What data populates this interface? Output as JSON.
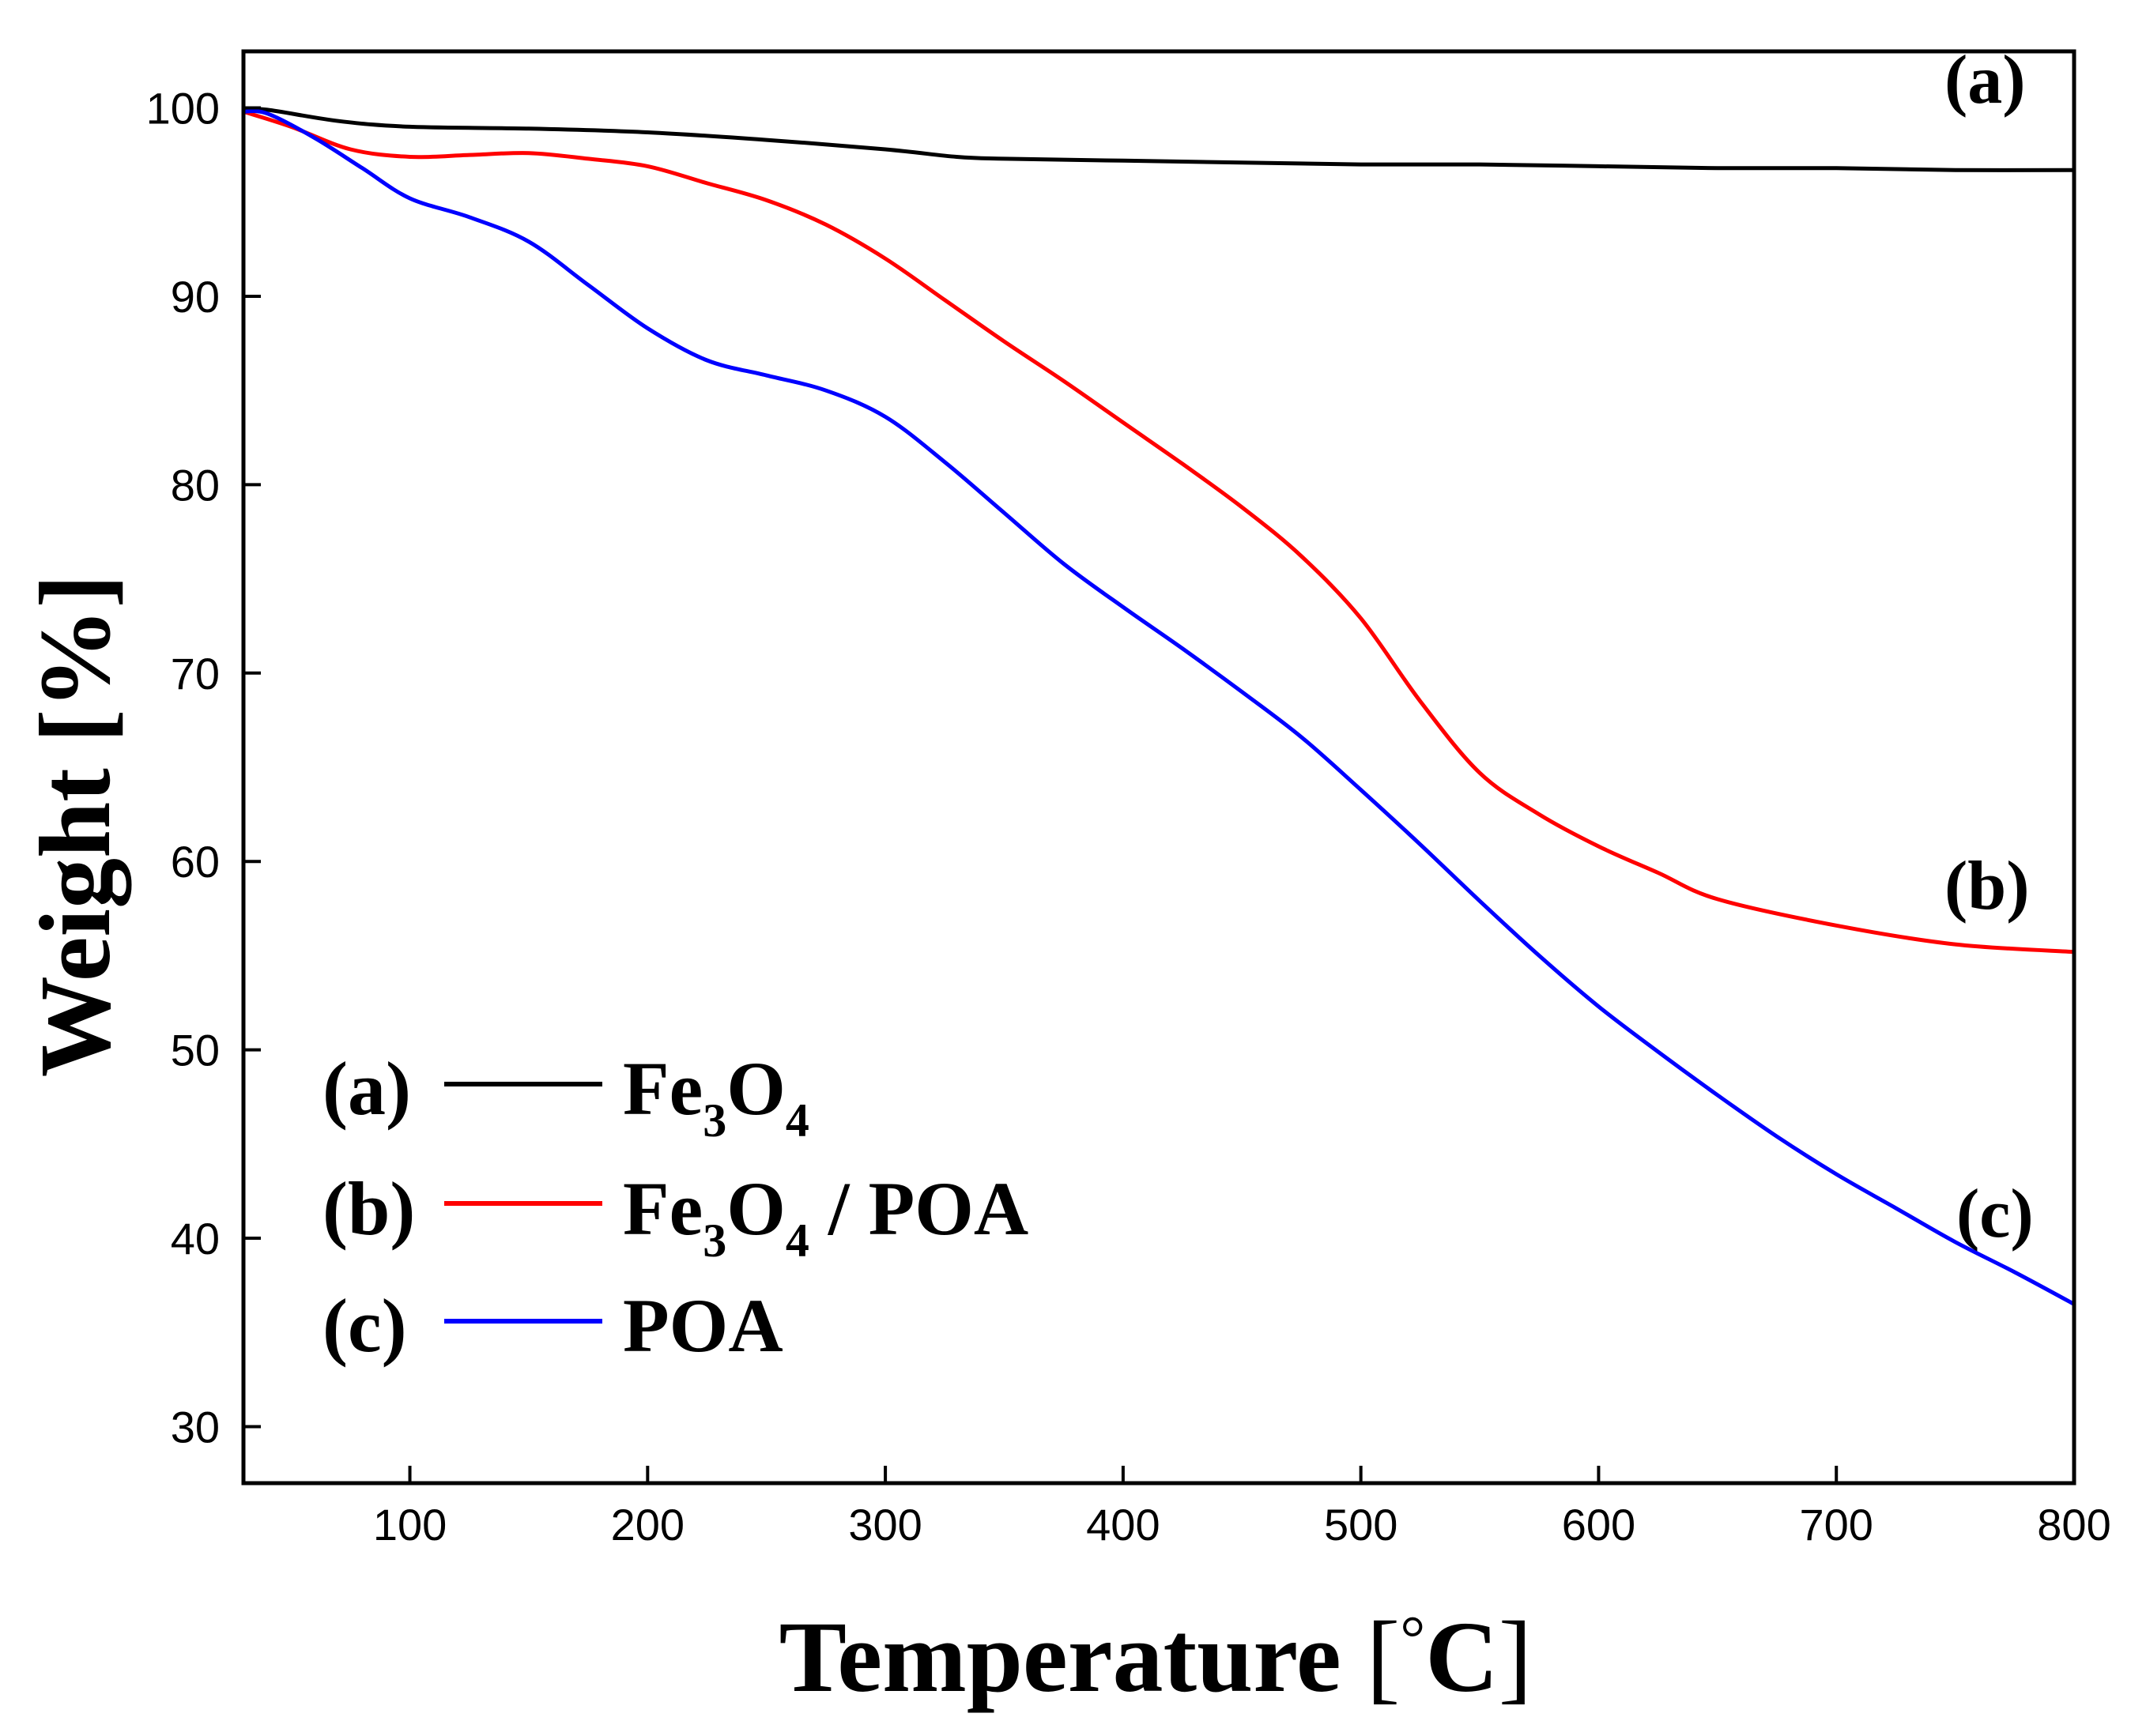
{
  "chart_data": {
    "type": "line",
    "xlabel": "Temperature [°C]",
    "xlabel_main": "Temperature",
    "xlabel_unit_open": "[",
    "xlabel_unit_deg": "°",
    "xlabel_unit_c": "C",
    "xlabel_unit_close": "]",
    "ylabel": "Weight [%]",
    "xlim": [
      30,
      800
    ],
    "ylim": [
      27,
      103
    ],
    "xticks": [
      100,
      200,
      300,
      400,
      500,
      600,
      700,
      800
    ],
    "yticks": [
      30,
      40,
      50,
      60,
      70,
      80,
      90,
      100
    ],
    "grid": false,
    "legend_position": "bottom-left",
    "series": [
      {
        "id": "a",
        "name": "Fe3O4",
        "tag": "(a)",
        "color": "#000000",
        "x": [
          30,
          40,
          70,
          100,
          150,
          200,
          250,
          300,
          330,
          350,
          400,
          450,
          500,
          550,
          600,
          650,
          700,
          750,
          800
        ],
        "y": [
          99.9,
          99.9,
          99.3,
          99.0,
          98.9,
          98.7,
          98.3,
          97.8,
          97.4,
          97.3,
          97.2,
          97.1,
          97.0,
          97.0,
          96.9,
          96.8,
          96.8,
          96.7,
          96.7
        ]
      },
      {
        "id": "b",
        "name": "Fe3O4 / POA",
        "tag": "(b)",
        "color": "#ff0000",
        "x": [
          30,
          50,
          75,
          100,
          125,
          150,
          175,
          200,
          225,
          250,
          275,
          300,
          325,
          350,
          375,
          400,
          425,
          450,
          475,
          500,
          525,
          550,
          575,
          600,
          625,
          650,
          700,
          750,
          800
        ],
        "y": [
          99.8,
          99.0,
          97.8,
          97.4,
          97.5,
          97.6,
          97.3,
          96.9,
          96.0,
          95.1,
          93.8,
          92.0,
          89.8,
          87.6,
          85.5,
          83.3,
          81.1,
          78.8,
          76.2,
          72.9,
          68.5,
          64.7,
          62.5,
          60.8,
          59.4,
          58.0,
          56.6,
          55.6,
          55.2
        ]
      },
      {
        "id": "c",
        "name": "POA",
        "tag": "(c)",
        "color": "#0000ff",
        "x": [
          30,
          40,
          60,
          80,
          100,
          125,
          150,
          175,
          200,
          225,
          250,
          275,
          300,
          325,
          350,
          375,
          400,
          425,
          450,
          475,
          500,
          525,
          550,
          575,
          600,
          625,
          650,
          675,
          700,
          725,
          750,
          775,
          800
        ],
        "y": [
          99.8,
          99.7,
          98.4,
          96.8,
          95.2,
          94.2,
          92.9,
          90.6,
          88.3,
          86.6,
          85.8,
          85.0,
          83.6,
          81.2,
          78.5,
          75.8,
          73.5,
          71.3,
          69.0,
          66.6,
          63.8,
          60.9,
          57.9,
          55.0,
          52.3,
          49.9,
          47.6,
          45.4,
          43.4,
          41.6,
          39.8,
          38.2,
          36.5
        ]
      }
    ]
  },
  "legend": [
    {
      "tag": "(a)",
      "text": "Fe",
      "sub1": "3",
      "mid": "O",
      "sub2": "4",
      "rest": ""
    },
    {
      "tag": "(b)",
      "text": "Fe",
      "sub1": "3",
      "mid": "O",
      "sub2": "4",
      "rest": " / POA"
    },
    {
      "tag": "(c)",
      "text": "POA",
      "sub1": "",
      "mid": "",
      "sub2": "",
      "rest": ""
    }
  ]
}
